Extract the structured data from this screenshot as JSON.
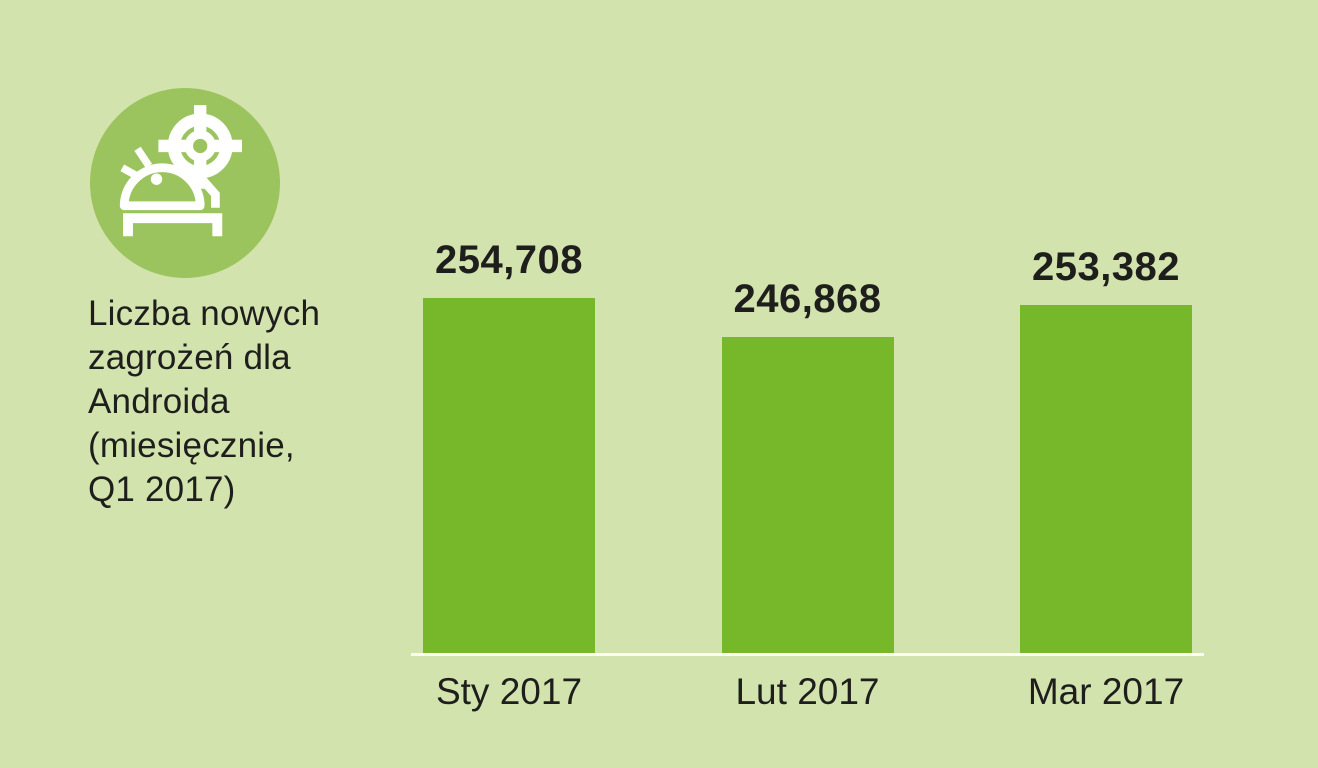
{
  "page": {
    "background_color": "#d3e3ae",
    "text_color": "#1e1e1c"
  },
  "infographic": {
    "icon": {
      "name": "android-target-icon",
      "circle_color": "#9cc45e",
      "glyph_color": "#ffffff"
    },
    "caption": "Liczba nowych zagrożeń dla Androida (miesięcznie, Q1 2017)",
    "caption_lines": [
      "Liczba nowych",
      "zagrożeń dla",
      "Androida",
      "(miesięcznie,",
      "Q1 2017)"
    ]
  },
  "chart_data": {
    "type": "bar",
    "title": "Liczba nowych zagrożeń dla Androida (miesięcznie, Q1 2017)",
    "categories": [
      "Sty 2017",
      "Lut 2017",
      "Mar 2017"
    ],
    "values": [
      254708,
      246868,
      253382
    ],
    "value_labels": [
      "254,708",
      "246,868",
      "253,382"
    ],
    "xlabel": "",
    "ylabel": "",
    "ylim": [
      183350,
      254710
    ],
    "grid": false,
    "legend": false,
    "bar_color": "#76b82a",
    "axis_line_color": "#fbfcf3",
    "label_color": "#1e1e1c"
  }
}
